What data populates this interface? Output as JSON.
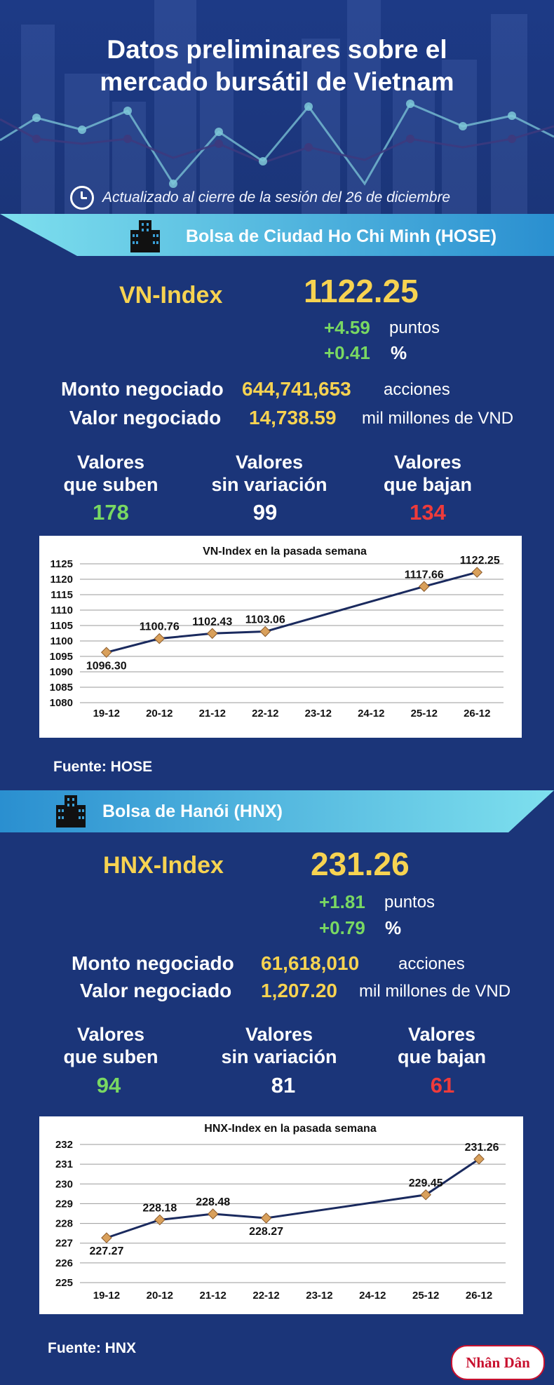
{
  "header": {
    "title_line1": "Datos preliminares sobre el",
    "title_line2": "mercado bursátil de Vietnam",
    "updated": "Actualizado al cierre de la sesión del 26 de diciembre"
  },
  "hose": {
    "exchange": "Bolsa de Ciudad Ho Chi Minh (HOSE)",
    "index_name": "VN-Index",
    "index_value": "1122.25",
    "change_points": "+4.59",
    "points_unit": "puntos",
    "change_percent": "+0.41",
    "percent_unit": "%",
    "volume_label": "Monto negociado",
    "volume_value": "644,741,653",
    "volume_unit": "acciones",
    "value_label": "Valor negociado",
    "value_value": "14,738.59",
    "value_unit": "mil millones de VND",
    "up_label_1": "Valores",
    "up_label_2": "que suben",
    "up_count": "178",
    "flat_label_1": "Valores",
    "flat_label_2": "sin variación",
    "flat_count": "99",
    "down_label_1": "Valores",
    "down_label_2": "que bajan",
    "down_count": "134",
    "source": "Fuente: HOSE"
  },
  "hnx": {
    "exchange": "Bolsa de Hanói (HNX)",
    "index_name": "HNX-Index",
    "index_value": "231.26",
    "change_points": "+1.81",
    "points_unit": "puntos",
    "change_percent": "+0.79",
    "percent_unit": "%",
    "volume_label": "Monto negociado",
    "volume_value": "61,618,010",
    "volume_unit": "acciones",
    "value_label": "Valor negociado",
    "value_value": "1,207.20",
    "value_unit": "mil millones de VND",
    "up_label_1": "Valores",
    "up_label_2": "que suben",
    "up_count": "94",
    "flat_label_1": "Valores",
    "flat_label_2": "sin variación",
    "flat_count": "81",
    "down_label_1": "Valores",
    "down_label_2": "que bajan",
    "down_count": "61",
    "source": "Fuente:  HNX"
  },
  "logo_text": "Nhân Dân",
  "colors": {
    "background": "#1b3579",
    "accent_yellow": "#f7d351",
    "up_green": "#79d862",
    "down_red": "#ef3b3b",
    "band_cyan": "#4fc6e3",
    "line": "#1a2a5e",
    "marker": "#d9a05b"
  },
  "chart_data": [
    {
      "type": "line",
      "title": "VN-Index en la pasada semana",
      "categories": [
        "19-12",
        "20-12",
        "21-12",
        "22-12",
        "23-12",
        "24-12",
        "25-12",
        "26-12"
      ],
      "series": [
        {
          "values": [
            1096.3,
            1100.76,
            1102.43,
            1103.06,
            null,
            null,
            1117.66,
            1122.25
          ],
          "labels": [
            "1096.30",
            "1100.76",
            "1102.43",
            "1103.06",
            "",
            "",
            "1117.66",
            "1122.25"
          ]
        }
      ],
      "ylim": [
        1080,
        1125
      ],
      "yticks": [
        "1080",
        "1085",
        "1090",
        "1095",
        "1100",
        "1105",
        "1110",
        "1115",
        "1120",
        "1125"
      ],
      "grid": true,
      "legend": "none"
    },
    {
      "type": "line",
      "title": "HNX-Index en la pasada semana",
      "categories": [
        "19-12",
        "20-12",
        "21-12",
        "22-12",
        "23-12",
        "24-12",
        "25-12",
        "26-12"
      ],
      "series": [
        {
          "values": [
            227.27,
            228.18,
            228.48,
            228.27,
            null,
            null,
            229.45,
            231.26
          ],
          "labels": [
            "227.27",
            "228.18",
            "228.48",
            "228.27",
            "",
            "",
            "229.45",
            "231.26"
          ]
        }
      ],
      "ylim": [
        225,
        232
      ],
      "yticks": [
        "225",
        "226",
        "227",
        "228",
        "229",
        "230",
        "231",
        "232"
      ],
      "grid": true,
      "legend": "none"
    }
  ]
}
